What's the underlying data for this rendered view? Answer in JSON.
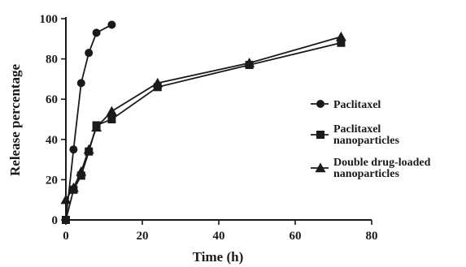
{
  "chart_data": {
    "type": "line",
    "xlabel": "Time (h)",
    "ylabel": "Release percentage",
    "xlim": [
      0,
      80
    ],
    "ylim": [
      0,
      100
    ],
    "xticks": [
      0,
      20,
      40,
      60,
      80
    ],
    "yticks": [
      0,
      20,
      40,
      60,
      80,
      100
    ],
    "grid": false,
    "legend_position": "right",
    "series": [
      {
        "name": "Paclitaxel",
        "marker": "circle",
        "x": [
          0,
          2,
          4,
          6,
          8,
          12
        ],
        "y": [
          0,
          35,
          68,
          83,
          93,
          97
        ]
      },
      {
        "name": "Paclitaxel nanoparticles",
        "marker": "square",
        "x": [
          0,
          2,
          4,
          6,
          8,
          12,
          24,
          48,
          72
        ],
        "y": [
          0,
          15,
          22,
          34,
          47,
          50,
          66,
          77,
          88
        ]
      },
      {
        "name": "Double drug-loaded nanoparticles",
        "marker": "triangle",
        "x": [
          0,
          2,
          4,
          6,
          8,
          12,
          24,
          48,
          72
        ],
        "y": [
          10,
          16,
          24,
          35,
          46,
          54,
          68,
          78,
          91
        ]
      }
    ],
    "legend_lines": [
      [
        "Paclitaxel"
      ],
      [
        "Paclitaxel",
        "nanoparticles"
      ],
      [
        "Double drug-loaded",
        "nanoparticles"
      ]
    ],
    "color": "#1a1a1a"
  }
}
